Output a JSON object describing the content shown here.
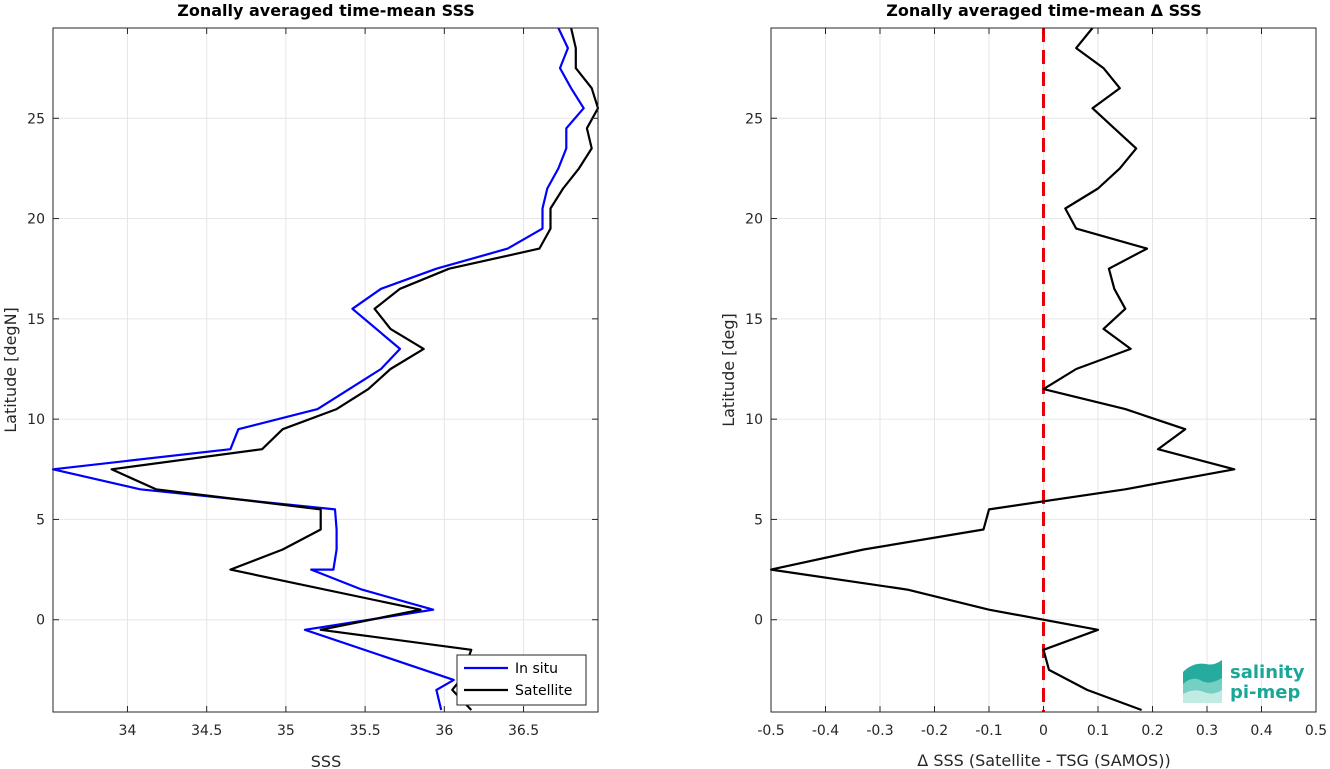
{
  "chart_data": [
    {
      "type": "line",
      "title": "Zonally averaged time-mean SSS",
      "xlabel": "SSS",
      "ylabel": "Latitude [degN]",
      "xlim": [
        33.53,
        36.97
      ],
      "ylim": [
        -4.6,
        29.5
      ],
      "xticks": [
        34,
        34.5,
        35,
        35.5,
        36,
        36.5
      ],
      "yticks": [
        0,
        5,
        10,
        15,
        20,
        25
      ],
      "grid": true,
      "legend": {
        "placement": "bottom-right"
      },
      "series": [
        {
          "name": "In situ",
          "color": "#0000ff",
          "points": [
            [
              35.98,
              -4.5
            ],
            [
              35.95,
              -3.5
            ],
            [
              36.06,
              -3.0
            ],
            [
              35.12,
              -0.5
            ],
            [
              35.93,
              0.5
            ],
            [
              35.48,
              1.5
            ],
            [
              35.16,
              2.5
            ],
            [
              35.3,
              2.5
            ],
            [
              35.32,
              3.5
            ],
            [
              35.32,
              4.5
            ],
            [
              35.31,
              5.5
            ],
            [
              34.08,
              6.5
            ],
            [
              33.53,
              7.5
            ],
            [
              34.65,
              8.5
            ],
            [
              34.7,
              9.5
            ],
            [
              35.2,
              10.5
            ],
            [
              35.6,
              12.5
            ],
            [
              35.72,
              13.5
            ],
            [
              35.42,
              15.5
            ],
            [
              35.6,
              16.5
            ],
            [
              35.95,
              17.5
            ],
            [
              36.4,
              18.5
            ],
            [
              36.62,
              19.5
            ],
            [
              36.62,
              20.5
            ],
            [
              36.65,
              21.5
            ],
            [
              36.72,
              22.5
            ],
            [
              36.77,
              23.5
            ],
            [
              36.77,
              24.5
            ],
            [
              36.88,
              25.5
            ],
            [
              36.8,
              26.5
            ],
            [
              36.73,
              27.5
            ],
            [
              36.78,
              28.5
            ],
            [
              36.72,
              29.5
            ]
          ]
        },
        {
          "name": "Satellite",
          "color": "#000000",
          "points": [
            [
              36.17,
              -4.5
            ],
            [
              36.05,
              -3.5
            ],
            [
              36.1,
              -3.0
            ],
            [
              36.17,
              -1.5
            ],
            [
              35.22,
              -0.5
            ],
            [
              35.85,
              0.5
            ],
            [
              34.65,
              2.5
            ],
            [
              34.98,
              3.5
            ],
            [
              35.22,
              4.5
            ],
            [
              35.22,
              5.5
            ],
            [
              34.18,
              6.5
            ],
            [
              33.9,
              7.5
            ],
            [
              34.85,
              8.5
            ],
            [
              34.98,
              9.5
            ],
            [
              35.32,
              10.5
            ],
            [
              35.52,
              11.5
            ],
            [
              35.66,
              12.5
            ],
            [
              35.87,
              13.5
            ],
            [
              35.66,
              14.5
            ],
            [
              35.56,
              15.5
            ],
            [
              35.72,
              16.5
            ],
            [
              36.03,
              17.5
            ],
            [
              36.6,
              18.5
            ],
            [
              36.67,
              19.5
            ],
            [
              36.67,
              20.5
            ],
            [
              36.75,
              21.5
            ],
            [
              36.85,
              22.5
            ],
            [
              36.93,
              23.5
            ],
            [
              36.9,
              24.5
            ],
            [
              36.97,
              25.5
            ],
            [
              36.93,
              26.5
            ],
            [
              36.83,
              27.5
            ],
            [
              36.83,
              28.5
            ],
            [
              36.8,
              29.5
            ]
          ]
        }
      ]
    },
    {
      "type": "line",
      "title": "Zonally averaged time-mean Δ SSS",
      "xlabel": "Δ SSS (Satellite - TSG (SAMOS))",
      "ylabel": "Latitude [deg]",
      "xlim": [
        -0.5,
        0.5
      ],
      "ylim": [
        -4.6,
        29.5
      ],
      "xticks": [
        -0.5,
        -0.4,
        -0.3,
        -0.2,
        -0.1,
        0,
        0.1,
        0.2,
        0.3,
        0.4,
        0.5
      ],
      "yticks": [
        0,
        5,
        10,
        15,
        20,
        25
      ],
      "grid": true,
      "reference_line": {
        "x": 0,
        "color": "#e8000b",
        "style": "dashed"
      },
      "series": [
        {
          "color": "#000000",
          "points": [
            [
              0.18,
              -4.5
            ],
            [
              0.08,
              -3.5
            ],
            [
              0.01,
              -2.5
            ],
            [
              0.0,
              -1.5
            ],
            [
              0.1,
              -0.5
            ],
            [
              -0.1,
              0.5
            ],
            [
              -0.25,
              1.5
            ],
            [
              -0.5,
              2.5
            ],
            [
              -0.33,
              3.5
            ],
            [
              -0.11,
              4.5
            ],
            [
              -0.1,
              5.5
            ],
            [
              0.15,
              6.5
            ],
            [
              0.35,
              7.5
            ],
            [
              0.21,
              8.5
            ],
            [
              0.26,
              9.5
            ],
            [
              0.15,
              10.5
            ],
            [
              0.0,
              11.5
            ],
            [
              0.06,
              12.5
            ],
            [
              0.16,
              13.5
            ],
            [
              0.11,
              14.5
            ],
            [
              0.15,
              15.5
            ],
            [
              0.13,
              16.5
            ],
            [
              0.12,
              17.5
            ],
            [
              0.19,
              18.5
            ],
            [
              0.06,
              19.5
            ],
            [
              0.04,
              20.5
            ],
            [
              0.1,
              21.5
            ],
            [
              0.14,
              22.5
            ],
            [
              0.17,
              23.5
            ],
            [
              0.13,
              24.5
            ],
            [
              0.09,
              25.5
            ],
            [
              0.14,
              26.5
            ],
            [
              0.11,
              27.5
            ],
            [
              0.06,
              28.5
            ],
            [
              0.09,
              29.5
            ]
          ]
        }
      ]
    }
  ],
  "logo": {
    "line1": "salinity",
    "line2": "pi-mep",
    "color": "#1aa79a",
    "icon": "salinity-wave-icon"
  }
}
